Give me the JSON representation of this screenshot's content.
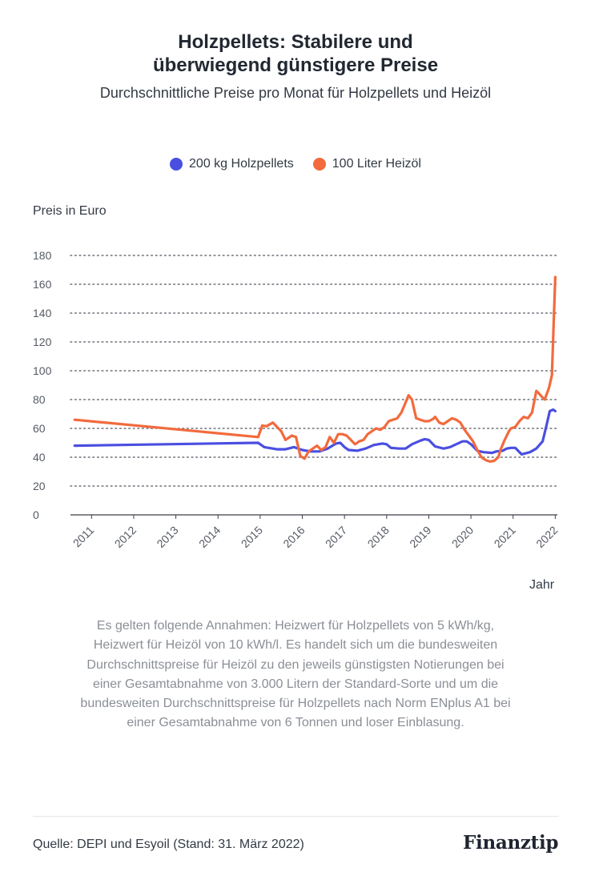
{
  "title_line1": "Holzpellets: Stabilere und",
  "title_line2": "überwiegend günstigere Preise",
  "subtitle": "Durchschnittliche Preise pro Monat für Holzpellets und Heizöl",
  "ylabel": "Preis in Euro",
  "xlabel": "Jahr",
  "note": "Es gelten folgende Annahmen: Heizwert für Holzpellets von 5 kWh/kg, Heizwert für Heizöl von 10 kWh/l. Es handelt sich um die bundesweiten Durchschnittspreise für Heizöl zu den jeweils günstigsten Notierungen bei einer Gesamtabnahme von 3.000 Litern der Standard-Sorte und um die bundesweiten Durchschnittspreise für Holzpellets nach Norm ENplus A1 bei einer Gesamtabnahme von 6 Tonnen und loser Einblasung.",
  "source": "Quelle: DEPI und Esyoil (Stand: 31. März 2022)",
  "logo": "Finanztip",
  "chart_data": {
    "type": "line",
    "title": "Holzpellets: Stabilere und überwiegend günstigere Preise",
    "subtitle": "Durchschnittliche Preise pro Monat für Holzpellets und Heizöl",
    "xlabel": "Jahr",
    "ylabel": "Preis in Euro",
    "ylim": [
      0,
      180
    ],
    "yticks": [
      0,
      20,
      40,
      60,
      80,
      100,
      120,
      140,
      160,
      180
    ],
    "xlim": [
      2010.5,
      2022.05
    ],
    "xticks": [
      "2011",
      "2012",
      "2013",
      "2014",
      "2015",
      "2016",
      "2017",
      "2018",
      "2019",
      "2020",
      "2021",
      "2022"
    ],
    "grid": "horizontal dotted",
    "legend_position": "top-center",
    "series": [
      {
        "name": "200 kg Holzpellets",
        "color": "#4a4fe0",
        "x": [
          2010.6,
          2014.95,
          2015.1,
          2015.4,
          2015.6,
          2015.8,
          2016.0,
          2016.2,
          2016.4,
          2016.6,
          2016.8,
          2016.9,
          2017.0,
          2017.1,
          2017.3,
          2017.5,
          2017.7,
          2017.9,
          2018.0,
          2018.1,
          2018.3,
          2018.45,
          2018.6,
          2018.8,
          2018.9,
          2019.0,
          2019.15,
          2019.35,
          2019.5,
          2019.65,
          2019.8,
          2019.9,
          2020.0,
          2020.15,
          2020.3,
          2020.5,
          2020.6,
          2020.75,
          2020.85,
          2020.95,
          2021.05,
          2021.2,
          2021.4,
          2021.55,
          2021.7,
          2021.8,
          2021.87,
          2021.95,
          2022.0
        ],
        "values": [
          48,
          50,
          47,
          45.5,
          45.5,
          47,
          45,
          44,
          44,
          46,
          49.5,
          50,
          47,
          45,
          44.5,
          46,
          48.5,
          49.5,
          49,
          46.5,
          46,
          46,
          49,
          51.5,
          52.5,
          52,
          47.5,
          46,
          47,
          49,
          51,
          51,
          49,
          44.5,
          43.5,
          43,
          44,
          44.5,
          46,
          46.5,
          46.5,
          42,
          43.5,
          46,
          51,
          63,
          72,
          73,
          72
        ]
      },
      {
        "name": "100 Liter Heizöl",
        "color": "#f26a3d",
        "x": [
          2010.6,
          2014.95,
          2015.05,
          2015.15,
          2015.3,
          2015.5,
          2015.6,
          2015.75,
          2015.85,
          2015.95,
          2016.05,
          2016.15,
          2016.25,
          2016.35,
          2016.45,
          2016.55,
          2016.65,
          2016.75,
          2016.85,
          2016.95,
          2017.05,
          2017.15,
          2017.25,
          2017.35,
          2017.45,
          2017.55,
          2017.65,
          2017.75,
          2017.85,
          2017.95,
          2018.05,
          2018.15,
          2018.25,
          2018.35,
          2018.45,
          2018.52,
          2018.6,
          2018.7,
          2018.8,
          2018.9,
          2019.0,
          2019.1,
          2019.15,
          2019.25,
          2019.35,
          2019.45,
          2019.55,
          2019.65,
          2019.75,
          2019.85,
          2019.95,
          2020.05,
          2020.15,
          2020.25,
          2020.35,
          2020.45,
          2020.55,
          2020.65,
          2020.7,
          2020.8,
          2020.9,
          2020.95,
          2021.05,
          2021.15,
          2021.25,
          2021.35,
          2021.45,
          2021.55,
          2021.62,
          2021.68,
          2021.75,
          2021.8,
          2021.85,
          2021.92,
          2021.97,
          2022.0
        ],
        "values": [
          66,
          54,
          62,
          61.5,
          64,
          58,
          52,
          55,
          54,
          41,
          39,
          44,
          46,
          48,
          45,
          47,
          54,
          50,
          56,
          56,
          55,
          52,
          49,
          51,
          52,
          56,
          58,
          60,
          59,
          61,
          65,
          66,
          67,
          71,
          78,
          83,
          80,
          67,
          66,
          65,
          65,
          66.5,
          68,
          64,
          63,
          65,
          67,
          66,
          64,
          59,
          55,
          51,
          45,
          40,
          38,
          37,
          37.5,
          40,
          45,
          52,
          58,
          60,
          61,
          65,
          68,
          67,
          71,
          86,
          84,
          82,
          80,
          84,
          88,
          97,
          140,
          165
        ]
      }
    ]
  }
}
